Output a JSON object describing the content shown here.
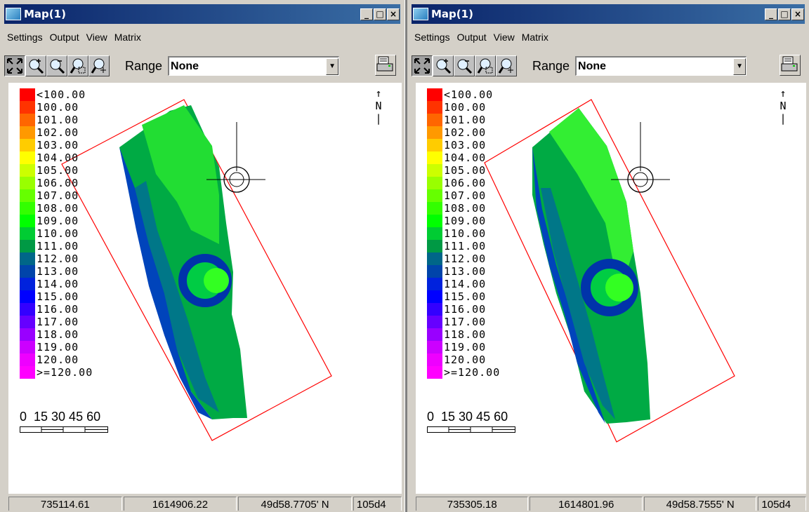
{
  "windows": [
    {
      "title": "Map(1)",
      "menu": [
        "Settings",
        "Output",
        "View",
        "Matrix"
      ],
      "range_label": "Range",
      "range_value": "None",
      "status": [
        "735114.61",
        "1614906.22",
        "49d58.7705' N",
        "105d4"
      ]
    },
    {
      "title": "Map(1)",
      "menu": [
        "Settings",
        "Output",
        "View",
        "Matrix"
      ],
      "range_label": "Range",
      "range_value": "None",
      "status": [
        "735305.18",
        "1614801.96",
        "49d58.7555' N",
        "105d4"
      ]
    }
  ],
  "window_buttons": {
    "minimize": "_",
    "maximize": "□",
    "close": "×"
  },
  "legend": [
    {
      "label": "<100.00",
      "color": "#ff0000"
    },
    {
      "label": "100.00",
      "color": "#ff3300"
    },
    {
      "label": "101.00",
      "color": "#ff6600"
    },
    {
      "label": "102.00",
      "color": "#ff9900"
    },
    {
      "label": "103.00",
      "color": "#ffcc00"
    },
    {
      "label": "104.00",
      "color": "#ffff00"
    },
    {
      "label": "105.00",
      "color": "#ccff00"
    },
    {
      "label": "106.00",
      "color": "#99ff00"
    },
    {
      "label": "107.00",
      "color": "#66ff00"
    },
    {
      "label": "108.00",
      "color": "#33ff00"
    },
    {
      "label": "109.00",
      "color": "#00ff00"
    },
    {
      "label": "110.00",
      "color": "#00cc33"
    },
    {
      "label": "111.00",
      "color": "#009944"
    },
    {
      "label": "112.00",
      "color": "#006688"
    },
    {
      "label": "113.00",
      "color": "#0044aa"
    },
    {
      "label": "114.00",
      "color": "#0022dd"
    },
    {
      "label": "115.00",
      "color": "#0000ff"
    },
    {
      "label": "116.00",
      "color": "#3300ff"
    },
    {
      "label": "117.00",
      "color": "#6600ff"
    },
    {
      "label": "118.00",
      "color": "#9900ff"
    },
    {
      "label": "119.00",
      "color": "#cc00ff"
    },
    {
      "label": "120.00",
      "color": "#ee00ff"
    },
    {
      "label": ">=120.00",
      "color": "#ff00ff"
    }
  ],
  "scale_text": "0  15 30 45 60",
  "north_text": "↑\nN\n|",
  "icons": [
    "zoom-extent-icon",
    "zoom-in-icon",
    "zoom-out-icon",
    "zoom-window-icon",
    "pan-icon",
    "print-icon",
    "app-map-icon"
  ]
}
